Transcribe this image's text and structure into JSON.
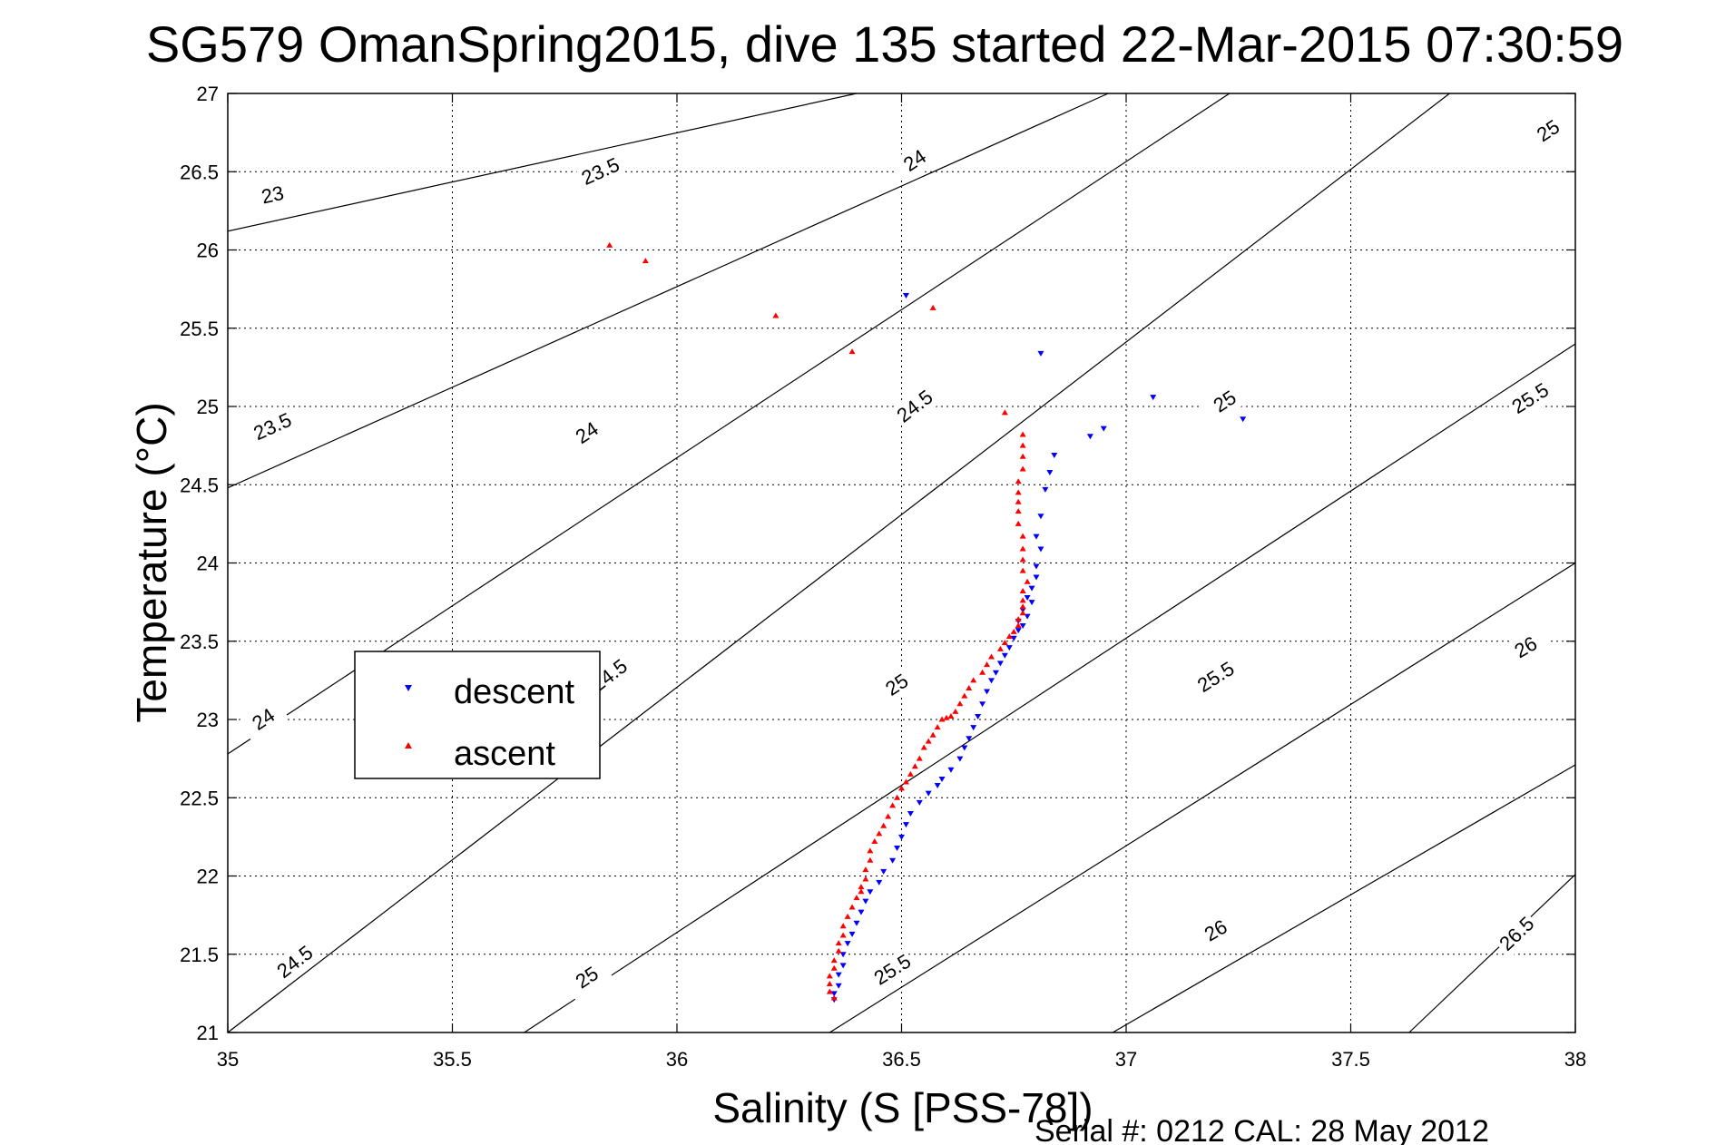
{
  "chart_data": {
    "type": "scatter",
    "title": "SG579 OmanSpring2015, dive 135 started 22-Mar-2015 07:30:59",
    "xlabel": "Salinity (S [PSS-78])",
    "ylabel": "Temperature (°C)",
    "xlim": [
      35,
      38
    ],
    "ylim": [
      21,
      27
    ],
    "xticks": [
      "35",
      "35.5",
      "36",
      "36.5",
      "37",
      "37.5",
      "38"
    ],
    "yticks": [
      "21",
      "21.5",
      "22",
      "22.5",
      "23",
      "23.5",
      "24",
      "24.5",
      "25",
      "25.5",
      "26",
      "26.5",
      "27"
    ],
    "grid": true,
    "legend_position": "left",
    "footer": "Serial #: 0212  CAL: 28 May 2012",
    "density_contours": [
      {
        "label": "23",
        "points": [
          [
            35.0,
            26.12
          ],
          [
            36.4,
            27.0
          ]
        ],
        "label_pos": [
          35.1,
          26.35
        ]
      },
      {
        "label": "23.5",
        "points": [
          [
            35.0,
            24.48
          ],
          [
            36.96,
            27.0
          ]
        ],
        "label_pos": [
          35.1,
          24.87
        ],
        "label2_pos": [
          35.83,
          26.5
        ]
      },
      {
        "label": "24",
        "points": [
          [
            35.0,
            22.78
          ],
          [
            37.23,
            27.0
          ]
        ],
        "label_pos": [
          35.08,
          23.0
        ],
        "label2_pos": [
          35.8,
          24.83
        ],
        "label3_pos": [
          36.53,
          26.57
        ]
      },
      {
        "label": "24.5",
        "points": [
          [
            35.0,
            21.0
          ],
          [
            37.72,
            27.0
          ]
        ],
        "label_pos": [
          35.15,
          21.45
        ],
        "label2_pos": [
          35.85,
          23.28
        ],
        "label3_pos": [
          36.53,
          25.0
        ]
      },
      {
        "label": "25",
        "points": [
          [
            35.66,
            21.0
          ],
          [
            38.0,
            25.4
          ]
        ],
        "label_pos": [
          35.8,
          21.35
        ],
        "label2_pos": [
          36.49,
          23.22
        ],
        "label3_pos": [
          37.22,
          25.03
        ],
        "label4_pos": [
          37.94,
          26.76
        ]
      },
      {
        "label": "25.5",
        "points": [
          [
            36.34,
            21.0
          ],
          [
            38.0,
            24.0
          ]
        ],
        "label_pos": [
          36.48,
          21.4
        ],
        "label2_pos": [
          37.2,
          23.27
        ],
        "label3_pos": [
          37.9,
          25.05
        ]
      },
      {
        "label": "26",
        "points": [
          [
            36.97,
            21.0
          ],
          [
            38.0,
            22.71
          ]
        ],
        "label_pos": [
          37.2,
          21.65
        ],
        "label2_pos": [
          37.89,
          23.46
        ]
      },
      {
        "label": "26.5",
        "points": [
          [
            37.63,
            21.0
          ],
          [
            38.0,
            22.01
          ]
        ],
        "label_pos": [
          37.87,
          21.63
        ]
      }
    ],
    "series": [
      {
        "name": "descent",
        "marker": "triangle-down",
        "color": "#0000ff",
        "points": [
          [
            36.51,
            25.71
          ],
          [
            36.81,
            25.34
          ],
          [
            37.06,
            25.06
          ],
          [
            37.26,
            24.92
          ],
          [
            36.95,
            24.86
          ],
          [
            36.92,
            24.81
          ],
          [
            36.84,
            24.69
          ],
          [
            36.83,
            24.58
          ],
          [
            36.82,
            24.47
          ],
          [
            36.81,
            24.3
          ],
          [
            36.8,
            24.17
          ],
          [
            36.81,
            24.09
          ],
          [
            36.8,
            23.98
          ],
          [
            36.8,
            23.91
          ],
          [
            36.79,
            23.84
          ],
          [
            36.78,
            23.78
          ],
          [
            36.79,
            23.75
          ],
          [
            36.77,
            23.7
          ],
          [
            36.78,
            23.66
          ],
          [
            36.76,
            23.63
          ],
          [
            36.77,
            23.6
          ],
          [
            36.76,
            23.57
          ],
          [
            36.75,
            23.52
          ],
          [
            36.74,
            23.46
          ],
          [
            36.73,
            23.41
          ],
          [
            36.72,
            23.36
          ],
          [
            36.71,
            23.3
          ],
          [
            36.7,
            23.25
          ],
          [
            36.69,
            23.18
          ],
          [
            36.68,
            23.1
          ],
          [
            36.67,
            23.02
          ],
          [
            36.66,
            22.95
          ],
          [
            36.65,
            22.88
          ],
          [
            36.64,
            22.82
          ],
          [
            36.63,
            22.75
          ],
          [
            36.61,
            22.68
          ],
          [
            36.59,
            22.62
          ],
          [
            36.58,
            22.58
          ],
          [
            36.56,
            22.53
          ],
          [
            36.54,
            22.47
          ],
          [
            36.52,
            22.4
          ],
          [
            36.51,
            22.33
          ],
          [
            36.5,
            22.25
          ],
          [
            36.49,
            22.18
          ],
          [
            36.48,
            22.1
          ],
          [
            36.46,
            22.03
          ],
          [
            36.45,
            21.96
          ],
          [
            36.43,
            21.9
          ],
          [
            36.42,
            21.84
          ],
          [
            36.41,
            21.77
          ],
          [
            36.4,
            21.7
          ],
          [
            36.39,
            21.63
          ],
          [
            36.38,
            21.57
          ],
          [
            36.37,
            21.5
          ],
          [
            36.37,
            21.43
          ],
          [
            36.36,
            21.37
          ],
          [
            36.36,
            21.3
          ],
          [
            36.35,
            21.25
          ],
          [
            36.35,
            21.21
          ]
        ]
      },
      {
        "name": "ascent",
        "marker": "triangle-up",
        "color": "#ff0000",
        "points": [
          [
            35.85,
            26.03
          ],
          [
            35.93,
            25.93
          ],
          [
            36.22,
            25.58
          ],
          [
            36.57,
            25.63
          ],
          [
            36.39,
            25.35
          ],
          [
            36.73,
            24.96
          ],
          [
            36.77,
            24.82
          ],
          [
            36.77,
            24.75
          ],
          [
            36.77,
            24.68
          ],
          [
            36.77,
            24.6
          ],
          [
            36.76,
            24.52
          ],
          [
            36.76,
            24.45
          ],
          [
            36.76,
            24.39
          ],
          [
            36.76,
            24.33
          ],
          [
            36.76,
            24.25
          ],
          [
            36.77,
            24.17
          ],
          [
            36.77,
            24.09
          ],
          [
            36.77,
            24.02
          ],
          [
            36.77,
            23.95
          ],
          [
            36.78,
            23.88
          ],
          [
            36.77,
            23.82
          ],
          [
            36.77,
            23.76
          ],
          [
            36.77,
            23.72
          ],
          [
            36.77,
            23.68
          ],
          [
            36.76,
            23.64
          ],
          [
            36.76,
            23.6
          ],
          [
            36.75,
            23.56
          ],
          [
            36.74,
            23.53
          ],
          [
            36.73,
            23.49
          ],
          [
            36.72,
            23.45
          ],
          [
            36.7,
            23.4
          ],
          [
            36.69,
            23.35
          ],
          [
            36.68,
            23.3
          ],
          [
            36.66,
            23.25
          ],
          [
            36.65,
            23.2
          ],
          [
            36.64,
            23.15
          ],
          [
            36.63,
            23.1
          ],
          [
            36.62,
            23.05
          ],
          [
            36.61,
            23.02
          ],
          [
            36.6,
            23.01
          ],
          [
            36.59,
            23.0
          ],
          [
            36.58,
            22.95
          ],
          [
            36.57,
            22.9
          ],
          [
            36.56,
            22.86
          ],
          [
            36.55,
            22.82
          ],
          [
            36.54,
            22.75
          ],
          [
            36.53,
            22.7
          ],
          [
            36.52,
            22.65
          ],
          [
            36.51,
            22.6
          ],
          [
            36.5,
            22.56
          ],
          [
            36.49,
            22.5
          ],
          [
            36.48,
            22.45
          ],
          [
            36.47,
            22.38
          ],
          [
            36.46,
            22.32
          ],
          [
            36.45,
            22.27
          ],
          [
            36.44,
            22.22
          ],
          [
            36.43,
            22.16
          ],
          [
            36.43,
            22.1
          ],
          [
            36.42,
            22.04
          ],
          [
            36.42,
            21.98
          ],
          [
            36.41,
            21.93
          ],
          [
            36.41,
            21.9
          ],
          [
            36.4,
            21.86
          ],
          [
            36.39,
            21.8
          ],
          [
            36.38,
            21.74
          ],
          [
            36.37,
            21.68
          ],
          [
            36.37,
            21.62
          ],
          [
            36.36,
            21.57
          ],
          [
            36.36,
            21.52
          ],
          [
            36.35,
            21.46
          ],
          [
            36.35,
            21.41
          ],
          [
            36.34,
            21.36
          ],
          [
            36.34,
            21.31
          ],
          [
            36.34,
            21.26
          ],
          [
            36.35,
            21.22
          ]
        ]
      }
    ]
  }
}
